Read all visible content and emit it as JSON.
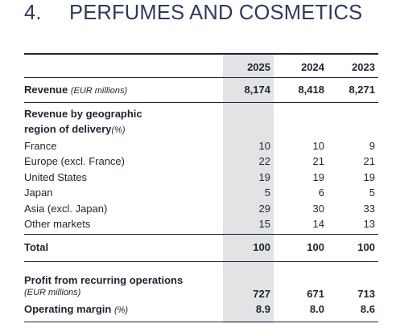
{
  "section": {
    "number": "4.",
    "title": "PERFUMES AND COSMETICS"
  },
  "table": {
    "years": [
      "2025",
      "2024",
      "2023"
    ],
    "revenue": {
      "label": "Revenue",
      "unit": "(EUR millions)",
      "values": [
        "8,174",
        "8,418",
        "8,271"
      ]
    },
    "geo_header": {
      "line1": "Revenue by geographic",
      "line2": "region of delivery",
      "unit": "(%)"
    },
    "geo_rows": [
      {
        "label": "France",
        "values": [
          "10",
          "10",
          "9"
        ]
      },
      {
        "label": "Europe (excl. France)",
        "values": [
          "22",
          "21",
          "21"
        ]
      },
      {
        "label": "United States",
        "values": [
          "19",
          "19",
          "19"
        ]
      },
      {
        "label": "Japan",
        "values": [
          "5",
          "6",
          "5"
        ]
      },
      {
        "label": "Asia (excl. Japan)",
        "values": [
          "29",
          "30",
          "33"
        ]
      },
      {
        "label": "Other markets",
        "values": [
          "15",
          "14",
          "13"
        ]
      }
    ],
    "total": {
      "label": "Total",
      "values": [
        "100",
        "100",
        "100"
      ]
    },
    "profit": {
      "label": "Profit from recurring operations",
      "unit": "(EUR millions)",
      "values": [
        "727",
        "671",
        "713"
      ]
    },
    "margin": {
      "label": "Operating margin",
      "unit": "(%)",
      "values": [
        "8.9",
        "8.0",
        "8.6"
      ]
    }
  }
}
